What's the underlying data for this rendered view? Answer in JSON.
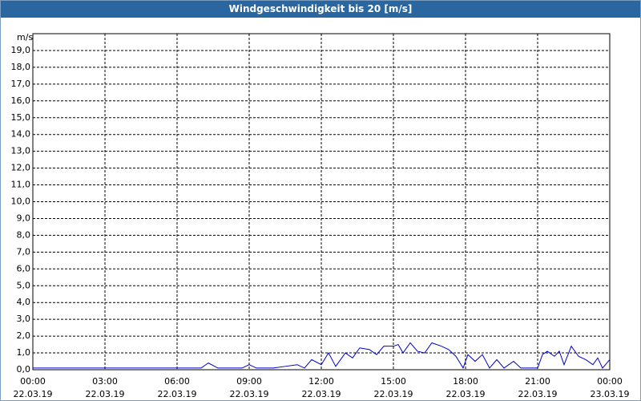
{
  "chart_data": {
    "type": "line",
    "title": "Windgeschwindigkeit bis 20 [m/s]",
    "y_label": "m/s",
    "x": [
      0,
      1,
      2,
      3,
      4,
      5,
      6,
      7,
      7.3,
      7.7,
      8,
      8.7,
      9,
      9.3,
      10,
      10.5,
      11,
      11.3,
      11.6,
      12,
      12.3,
      12.6,
      13,
      13.3,
      13.6,
      14,
      14.3,
      14.6,
      15,
      15.2,
      15.4,
      15.7,
      16,
      16.3,
      16.6,
      17,
      17.3,
      17.6,
      17.9,
      18.1,
      18.4,
      18.7,
      19,
      19.3,
      19.6,
      20,
      20.3,
      21,
      21.2,
      21.4,
      21.7,
      21.9,
      22.1,
      22.4,
      22.7,
      23,
      23.3,
      23.5,
      23.7,
      24
    ],
    "series": [
      {
        "color": "#0000cc",
        "values": [
          0.1,
          0.1,
          0.1,
          0.1,
          0.1,
          0.1,
          0.1,
          0.1,
          0.4,
          0.1,
          0.1,
          0.1,
          0.3,
          0.1,
          0.1,
          0.2,
          0.3,
          0.1,
          0.6,
          0.3,
          1.0,
          0.2,
          1.0,
          0.7,
          1.3,
          1.2,
          0.9,
          1.4,
          1.4,
          1.5,
          1.0,
          1.6,
          1.1,
          1.0,
          1.6,
          1.4,
          1.2,
          0.8,
          0.1,
          0.9,
          0.5,
          0.9,
          0.1,
          0.6,
          0.1,
          0.5,
          0.1,
          0.1,
          0.9,
          1.1,
          0.8,
          1.1,
          0.3,
          1.4,
          0.8,
          0.6,
          0.3,
          0.7,
          0.1,
          0.6
        ]
      }
    ],
    "xlim": [
      0,
      24
    ],
    "xticks": [
      {
        "value": 0,
        "label": "00:00",
        "date": "22.03.19"
      },
      {
        "value": 3,
        "label": "03:00",
        "date": "22.03.19"
      },
      {
        "value": 6,
        "label": "06:00",
        "date": "22.03.19"
      },
      {
        "value": 9,
        "label": "09:00",
        "date": "22.03.19"
      },
      {
        "value": 12,
        "label": "12:00",
        "date": "22.03.19"
      },
      {
        "value": 15,
        "label": "15:00",
        "date": "22.03.19"
      },
      {
        "value": 18,
        "label": "18:00",
        "date": "22.03.19"
      },
      {
        "value": 21,
        "label": "21:00",
        "date": "22.03.19"
      },
      {
        "value": 24,
        "label": "00:00",
        "date": "23.03.19"
      }
    ],
    "ylim": [
      0,
      20
    ],
    "yticks": [
      {
        "value": 0,
        "label": "0,0"
      },
      {
        "value": 1,
        "label": "1,0"
      },
      {
        "value": 2,
        "label": "2,0"
      },
      {
        "value": 3,
        "label": "3,0"
      },
      {
        "value": 4,
        "label": "4,0"
      },
      {
        "value": 5,
        "label": "5,0"
      },
      {
        "value": 6,
        "label": "6,0"
      },
      {
        "value": 7,
        "label": "7,0"
      },
      {
        "value": 8,
        "label": "8,0"
      },
      {
        "value": 9,
        "label": "9,0"
      },
      {
        "value": 10,
        "label": "10,0"
      },
      {
        "value": 11,
        "label": "11,0"
      },
      {
        "value": 12,
        "label": "12,0"
      },
      {
        "value": 13,
        "label": "13,0"
      },
      {
        "value": 14,
        "label": "14,0"
      },
      {
        "value": 15,
        "label": "15,0"
      },
      {
        "value": 16,
        "label": "16,0"
      },
      {
        "value": 17,
        "label": "17,0"
      },
      {
        "value": 18,
        "label": "18,0"
      },
      {
        "value": 19,
        "label": "19,0"
      }
    ],
    "grid": true
  }
}
